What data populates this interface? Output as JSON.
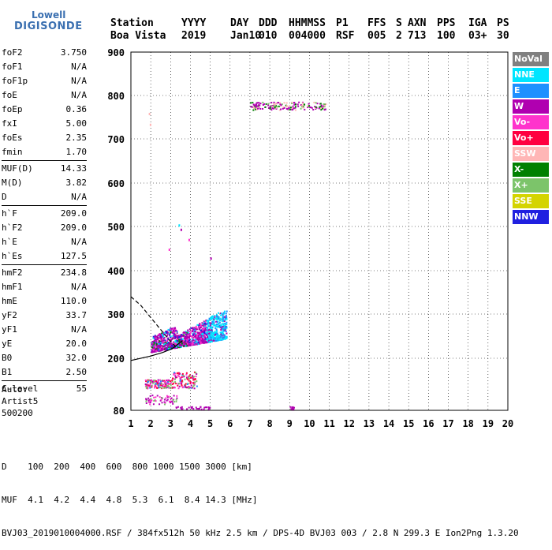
{
  "logo": {
    "line1": "Lowell",
    "line2": "DIGISONDE"
  },
  "header": {
    "labels": [
      "Station",
      "YYYY",
      "DAY",
      "DDD",
      "HHMMSS",
      "P1",
      "FFS",
      "S",
      "AXN",
      "PPS",
      "IGA",
      "PS"
    ],
    "values": [
      "Boa Vista",
      "2019",
      "Jan10",
      "010",
      "004000",
      "RSF",
      "005",
      "2",
      "713",
      "100",
      "03+",
      "30"
    ]
  },
  "params": [
    [
      {
        "k": "foF2",
        "v": "3.750"
      },
      {
        "k": "foF1",
        "v": "N/A"
      },
      {
        "k": "foF1p",
        "v": "N/A"
      },
      {
        "k": "foE",
        "v": "N/A"
      },
      {
        "k": "foEp",
        "v": "0.36"
      },
      {
        "k": "fxI",
        "v": "5.00"
      },
      {
        "k": "foEs",
        "v": "2.35"
      },
      {
        "k": "fmin",
        "v": "1.70"
      }
    ],
    [
      {
        "k": "MUF(D)",
        "v": "14.33"
      },
      {
        "k": "M(D)",
        "v": "3.82"
      },
      {
        "k": "D",
        "v": "N/A"
      }
    ],
    [
      {
        "k": "h`F",
        "v": "209.0"
      },
      {
        "k": "h`F2",
        "v": "209.0"
      },
      {
        "k": "h`E",
        "v": "N/A"
      },
      {
        "k": "h`Es",
        "v": "127.5"
      }
    ],
    [
      {
        "k": "hmF2",
        "v": "234.8"
      },
      {
        "k": "hmF1",
        "v": "N/A"
      },
      {
        "k": "hmE",
        "v": "110.0"
      },
      {
        "k": "yF2",
        "v": "33.7"
      },
      {
        "k": "yF1",
        "v": "N/A"
      },
      {
        "k": "yE",
        "v": "20.0"
      },
      {
        "k": "B0",
        "v": "32.0"
      },
      {
        "k": "B1",
        "v": "2.50"
      }
    ],
    [
      {
        "k": "C-level",
        "v": "55"
      }
    ]
  ],
  "auto": {
    "line1": "Auto:",
    "line2": "Artist5",
    "line3": "500200"
  },
  "legend": [
    {
      "name": "NoVal",
      "color": "#808080"
    },
    {
      "name": "NNE",
      "color": "#00e5ff"
    },
    {
      "name": "E",
      "color": "#1e90ff"
    },
    {
      "name": "W",
      "color": "#b000b0"
    },
    {
      "name": "Vo-",
      "color": "#ff33cc"
    },
    {
      "name": "Vo+",
      "color": "#ff0040"
    },
    {
      "name": "SSW",
      "color": "#ffb6b6"
    },
    {
      "name": "X-",
      "color": "#008000"
    },
    {
      "name": "X+",
      "color": "#7cc46a"
    },
    {
      "name": "SSE",
      "color": "#d4d400"
    },
    {
      "name": "NNW",
      "color": "#2020e0"
    }
  ],
  "chart_data": {
    "type": "scatter",
    "xlabel": "",
    "ylabel": "",
    "xlim": [
      1,
      20
    ],
    "ylim": [
      80,
      900
    ],
    "xticks": [
      1,
      2,
      3,
      4,
      5,
      6,
      7,
      8,
      9,
      10,
      11,
      12,
      13,
      14,
      15,
      16,
      17,
      18,
      19,
      20
    ],
    "yticks": [
      80,
      200,
      300,
      400,
      500,
      600,
      700,
      800,
      900
    ],
    "grid": true,
    "clusters": [
      {
        "label": "F-layer main trace",
        "x_range": [
          2.0,
          5.8
        ],
        "y_range": [
          210,
          360
        ]
      },
      {
        "label": "E/Es trace",
        "x_range": [
          1.7,
          4.3
        ],
        "y_range": [
          130,
          170
        ]
      },
      {
        "label": "Low echoes",
        "x_range": [
          1.7,
          3.3
        ],
        "y_range": [
          95,
          120
        ]
      },
      {
        "label": "Second hop",
        "x_range": [
          7.0,
          10.8
        ],
        "y_range": [
          765,
          790
        ]
      }
    ],
    "profile_solid": [
      [
        1.0,
        195
      ],
      [
        2.0,
        205
      ],
      [
        2.6,
        213
      ],
      [
        3.1,
        222
      ],
      [
        3.6,
        240
      ]
    ],
    "profile_dashed": [
      [
        1.0,
        340
      ],
      [
        1.5,
        320
      ],
      [
        2.0,
        292
      ],
      [
        2.5,
        265
      ],
      [
        3.0,
        238
      ],
      [
        3.3,
        225
      ]
    ]
  },
  "bottom": {
    "line1": "D    100  200  400  600  800 1000 1500 3000 [km]",
    "line2": "MUF  4.1  4.2  4.4  4.8  5.3  6.1  8.4 14.3 [MHz]",
    "line3": "BVJ03_2019010004000.RSF / 384fx512h 50 kHz 2.5 km / DPS-4D BVJ03 003 / 2.8 N 299.3 E Ion2Png 1.3.20"
  }
}
